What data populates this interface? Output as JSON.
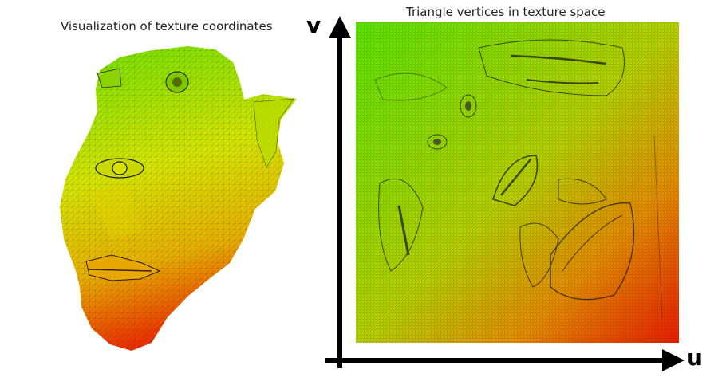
{
  "left_panel": {
    "caption": "Visualization of texture coordinates"
  },
  "right_panel": {
    "caption": "Triangle vertices in texture space"
  },
  "axes": {
    "x_label": "u",
    "y_label": "v",
    "color": "#000000"
  },
  "colors": {
    "gradient_top": "#6ee000",
    "gradient_mid": "#d8ea00",
    "gradient_bottom": "#ee2a00",
    "wire": "#2a2a00"
  }
}
